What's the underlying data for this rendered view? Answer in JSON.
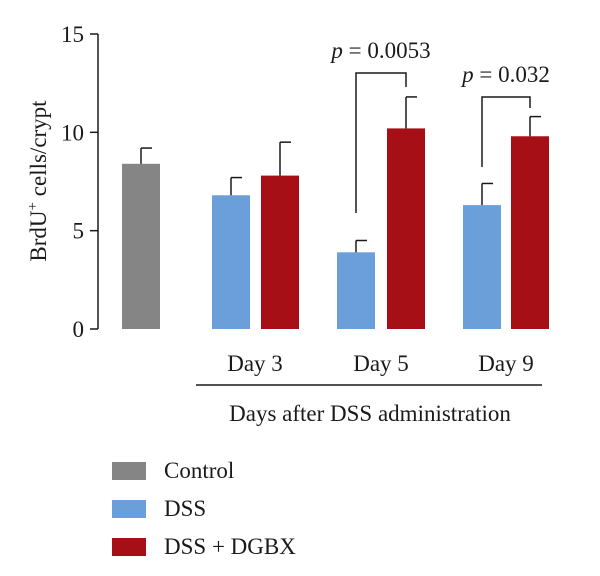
{
  "chart_data": {
    "type": "bar",
    "ylabel_main": "BrdU",
    "ylabel_sup": "+",
    "ylabel_rest": " cells/crypt",
    "ylim": [
      0,
      15
    ],
    "yticks": [
      "0",
      "5",
      "10",
      "15"
    ],
    "group_labels": [
      "Day 3",
      "Day 5",
      "Day 9"
    ],
    "xlabel": "Days after DSS administration",
    "bars": [
      {
        "series": "Control",
        "group": null,
        "value": 8.4,
        "error": 0.8
      },
      {
        "series": "DSS",
        "group": "Day 3",
        "value": 6.8,
        "error": 0.9
      },
      {
        "series": "DSS + DGBX",
        "group": "Day 3",
        "value": 7.8,
        "error": 1.7
      },
      {
        "series": "DSS",
        "group": "Day 5",
        "value": 3.9,
        "error": 0.6
      },
      {
        "series": "DSS + DGBX",
        "group": "Day 5",
        "value": 10.2,
        "error": 1.6
      },
      {
        "series": "DSS",
        "group": "Day 9",
        "value": 6.3,
        "error": 1.1
      },
      {
        "series": "DSS + DGBX",
        "group": "Day 9",
        "value": 9.8,
        "error": 1.0
      }
    ],
    "annotations": [
      {
        "p_symbol": "p",
        "text": " = 0.0053",
        "between": [
          "Day 5 DSS",
          "Day 5 DSS + DGBX"
        ]
      },
      {
        "p_symbol": "p",
        "text": " = 0.032",
        "between": [
          "Day 9 DSS",
          "Day 9 DSS + DGBX"
        ]
      }
    ],
    "series": [
      {
        "name": "Control",
        "color": "#858585"
      },
      {
        "name": "DSS",
        "color": "#6a9fd9"
      },
      {
        "name": "DSS + DGBX",
        "color": "#a50f15"
      }
    ],
    "grid": false,
    "legend_position": "bottom-left"
  }
}
